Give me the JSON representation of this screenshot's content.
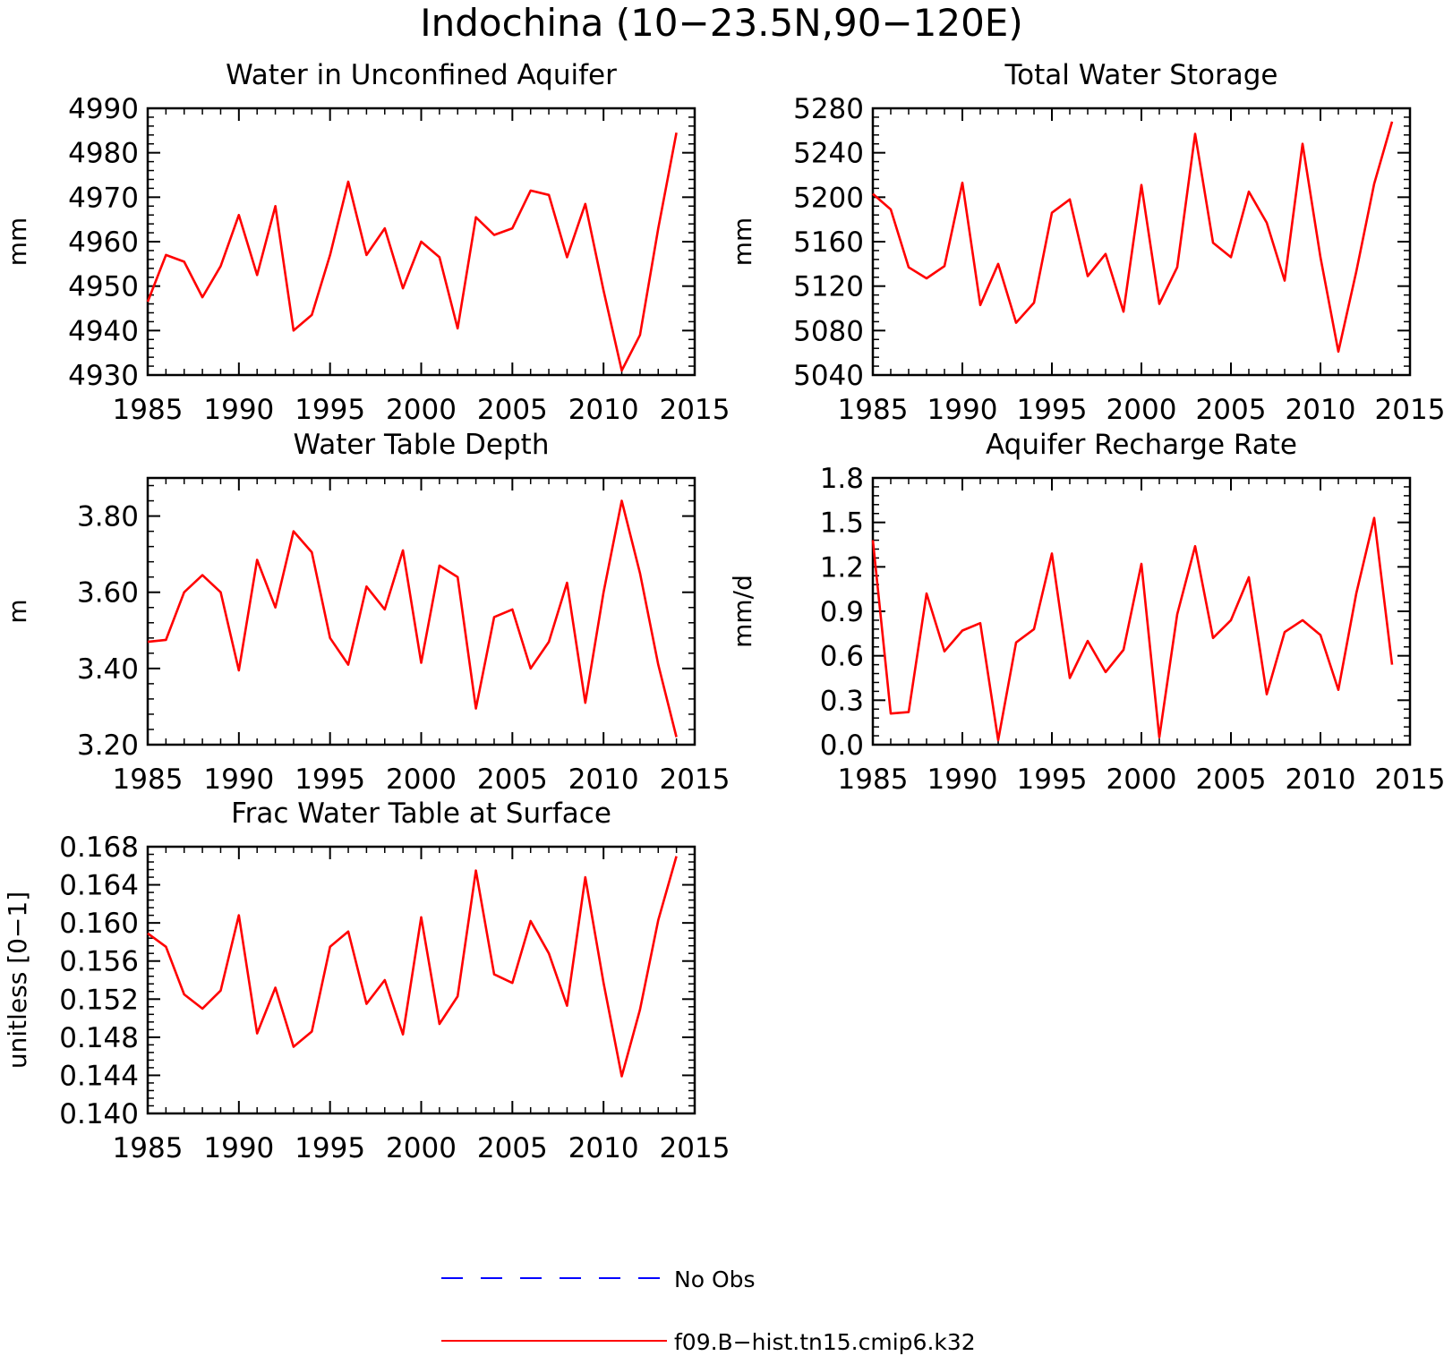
{
  "figure_title": "Indochina (10−23.5N,90−120E)",
  "colors": {
    "model": "#ff0000",
    "obs": "#0000ff",
    "axis": "#000000",
    "background": "#ffffff"
  },
  "legend": {
    "placement": "bottom-center",
    "items": [
      {
        "label": "No Obs",
        "style": "dashed",
        "color": "#0000ff"
      },
      {
        "label": "f09.B−hist.tn15.cmip6.k32",
        "style": "solid",
        "color": "#ff0000"
      }
    ]
  },
  "chart_data": [
    {
      "type": "line",
      "title": "Water in Unconfined Aquifer",
      "xlabel": "",
      "ylabel": "mm",
      "xlim": [
        1985,
        2015
      ],
      "x_ticks": [
        1985,
        1990,
        1995,
        2000,
        2005,
        2010,
        2015
      ],
      "x_tick_labels": [
        "1985",
        "1990",
        "1995",
        "2000",
        "2005",
        "2010",
        "2015"
      ],
      "ylim": [
        4930,
        4990
      ],
      "y_ticks": [
        4930,
        4940,
        4950,
        4960,
        4970,
        4980,
        4990
      ],
      "y_tick_labels": [
        "4930",
        "4940",
        "4950",
        "4960",
        "4970",
        "4980",
        "4990"
      ],
      "grid": false,
      "x": [
        1985,
        1986,
        1987,
        1988,
        1989,
        1990,
        1991,
        1992,
        1993,
        1994,
        1995,
        1996,
        1997,
        1998,
        1999,
        2000,
        2001,
        2002,
        2003,
        2004,
        2005,
        2006,
        2007,
        2008,
        2009,
        2010,
        2011,
        2012,
        2013,
        2014
      ],
      "series": [
        {
          "name": "f09.B−hist.tn15.cmip6.k32",
          "values": [
            4946.5,
            4957,
            4955.5,
            4947.5,
            4954.5,
            4966,
            4952.5,
            4968,
            4940,
            4943.5,
            4957,
            4973.5,
            4957,
            4963,
            4949.5,
            4960,
            4956.5,
            4940.5,
            4965.5,
            4961.5,
            4963,
            4971.5,
            4970.5,
            4956.5,
            4968.5,
            4949,
            4931,
            4939,
            4963,
            4984.5
          ]
        }
      ]
    },
    {
      "type": "line",
      "title": "Total Water Storage",
      "xlabel": "",
      "ylabel": "mm",
      "xlim": [
        1985,
        2015
      ],
      "x_ticks": [
        1985,
        1990,
        1995,
        2000,
        2005,
        2010,
        2015
      ],
      "x_tick_labels": [
        "1985",
        "1990",
        "1995",
        "2000",
        "2005",
        "2010",
        "2015"
      ],
      "ylim": [
        5040,
        5280
      ],
      "y_ticks": [
        5040,
        5080,
        5120,
        5160,
        5200,
        5240,
        5280
      ],
      "y_tick_labels": [
        "5040",
        "5080",
        "5120",
        "5160",
        "5200",
        "5240",
        "5280"
      ],
      "grid": false,
      "x": [
        1985,
        1986,
        1987,
        1988,
        1989,
        1990,
        1991,
        1992,
        1993,
        1994,
        1995,
        1996,
        1997,
        1998,
        1999,
        2000,
        2001,
        2002,
        2003,
        2004,
        2005,
        2006,
        2007,
        2008,
        2009,
        2010,
        2011,
        2012,
        2013,
        2014
      ],
      "series": [
        {
          "name": "f09.B−hist.tn15.cmip6.k32",
          "values": [
            5203,
            5189,
            5137,
            5127,
            5138,
            5213,
            5103,
            5140,
            5087,
            5105,
            5186,
            5198,
            5129,
            5149,
            5097,
            5211,
            5104,
            5137,
            5257,
            5159,
            5146,
            5205,
            5177,
            5125,
            5248,
            5146,
            5061,
            5133,
            5212,
            5268
          ]
        }
      ]
    },
    {
      "type": "line",
      "title": "Water Table Depth",
      "xlabel": "",
      "ylabel": "m",
      "xlim": [
        1985,
        2015
      ],
      "x_ticks": [
        1985,
        1990,
        1995,
        2000,
        2005,
        2010,
        2015
      ],
      "x_tick_labels": [
        "1985",
        "1990",
        "1995",
        "2000",
        "2005",
        "2010",
        "2015"
      ],
      "ylim": [
        3.2,
        3.9
      ],
      "y_ticks": [
        3.2,
        3.4,
        3.6,
        3.8
      ],
      "y_tick_labels": [
        "3.20",
        "3.40",
        "3.60",
        "3.80"
      ],
      "grid": false,
      "x": [
        1985,
        1986,
        1987,
        1988,
        1989,
        1990,
        1991,
        1992,
        1993,
        1994,
        1995,
        1996,
        1997,
        1998,
        1999,
        2000,
        2001,
        2002,
        2003,
        2004,
        2005,
        2006,
        2007,
        2008,
        2009,
        2010,
        2011,
        2012,
        2013,
        2014
      ],
      "series": [
        {
          "name": "f09.B−hist.tn15.cmip6.k32",
          "values": [
            3.47,
            3.475,
            3.6,
            3.645,
            3.6,
            3.395,
            3.685,
            3.56,
            3.76,
            3.705,
            3.48,
            3.41,
            3.615,
            3.555,
            3.71,
            3.415,
            3.67,
            3.64,
            3.295,
            3.535,
            3.555,
            3.4,
            3.47,
            3.625,
            3.31,
            3.6,
            3.84,
            3.65,
            3.41,
            3.22
          ]
        }
      ]
    },
    {
      "type": "line",
      "title": "Aquifer Recharge Rate",
      "xlabel": "",
      "ylabel": "mm/d",
      "xlim": [
        1985,
        2015
      ],
      "x_ticks": [
        1985,
        1990,
        1995,
        2000,
        2005,
        2010,
        2015
      ],
      "x_tick_labels": [
        "1985",
        "1990",
        "1995",
        "2000",
        "2005",
        "2010",
        "2015"
      ],
      "ylim": [
        0,
        1.8
      ],
      "y_ticks": [
        0,
        0.3,
        0.6,
        0.9,
        1.2,
        1.5,
        1.8
      ],
      "y_tick_labels": [
        "0.0",
        "0.3",
        "0.6",
        "0.9",
        "1.2",
        "1.5",
        "1.8"
      ],
      "grid": false,
      "x": [
        1985,
        1986,
        1987,
        1988,
        1989,
        1990,
        1991,
        1992,
        1993,
        1994,
        1995,
        1996,
        1997,
        1998,
        1999,
        2000,
        2001,
        2002,
        2003,
        2004,
        2005,
        2006,
        2007,
        2008,
        2009,
        2010,
        2011,
        2012,
        2013,
        2014
      ],
      "series": [
        {
          "name": "f09.B−hist.tn15.cmip6.k32",
          "values": [
            1.38,
            0.21,
            0.22,
            1.02,
            0.63,
            0.77,
            0.82,
            0.03,
            0.69,
            0.78,
            1.29,
            0.45,
            0.7,
            0.49,
            0.64,
            1.22,
            0.05,
            0.88,
            1.34,
            0.72,
            0.84,
            1.13,
            0.34,
            0.76,
            0.84,
            0.74,
            0.37,
            1.02,
            1.53,
            0.54
          ]
        }
      ]
    },
    {
      "type": "line",
      "title": "Frac Water Table at Surface",
      "xlabel": "",
      "ylabel": "unitless [0−1]",
      "xlim": [
        1985,
        2015
      ],
      "x_ticks": [
        1985,
        1990,
        1995,
        2000,
        2005,
        2010,
        2015
      ],
      "x_tick_labels": [
        "1985",
        "1990",
        "1995",
        "2000",
        "2005",
        "2010",
        "2015"
      ],
      "ylim": [
        0.14,
        0.168
      ],
      "y_ticks": [
        0.14,
        0.144,
        0.148,
        0.152,
        0.156,
        0.16,
        0.164,
        0.168
      ],
      "y_tick_labels": [
        "0.140",
        "0.144",
        "0.148",
        "0.152",
        "0.156",
        "0.160",
        "0.164",
        "0.168"
      ],
      "grid": false,
      "x": [
        1985,
        1986,
        1987,
        1988,
        1989,
        1990,
        1991,
        1992,
        1993,
        1994,
        1995,
        1996,
        1997,
        1998,
        1999,
        2000,
        2001,
        2002,
        2003,
        2004,
        2005,
        2006,
        2007,
        2008,
        2009,
        2010,
        2011,
        2012,
        2013,
        2014
      ],
      "series": [
        {
          "name": "f09.B−hist.tn15.cmip6.k32",
          "values": [
            0.1589,
            0.1575,
            0.1525,
            0.151,
            0.1529,
            0.1608,
            0.1484,
            0.1532,
            0.147,
            0.1486,
            0.1575,
            0.1591,
            0.1515,
            0.154,
            0.1483,
            0.1606,
            0.1494,
            0.1523,
            0.1655,
            0.1546,
            0.1537,
            0.1602,
            0.1568,
            0.1513,
            0.1648,
            0.1537,
            0.1439,
            0.1509,
            0.1603,
            0.167
          ]
        }
      ]
    }
  ]
}
